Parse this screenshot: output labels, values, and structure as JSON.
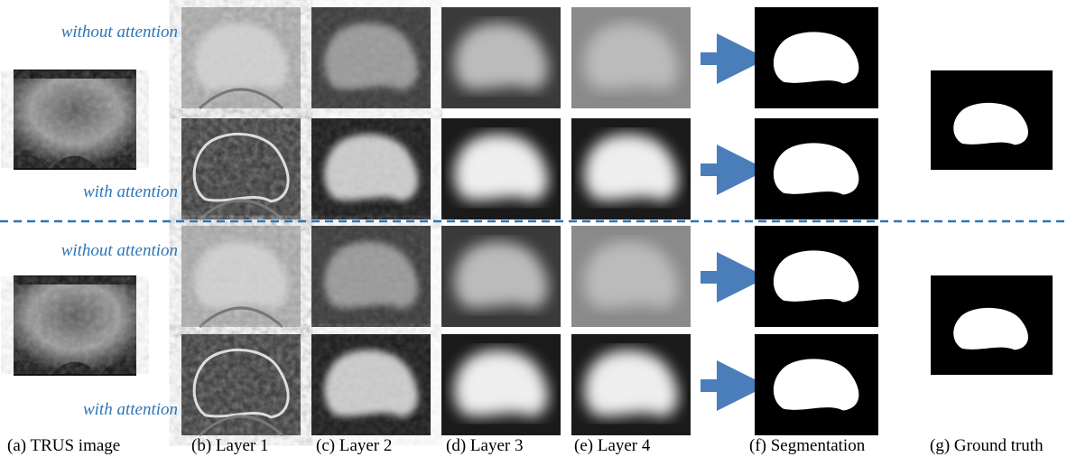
{
  "row_labels": [
    "without attention",
    "with attention",
    "without attention",
    "with attention"
  ],
  "captions": [
    "(a) TRUS image",
    "(b) Layer 1",
    "(c) Layer 2",
    "(d) Layer 3",
    "(e) Layer 4",
    "(f) Segmentation",
    "(g) Ground truth"
  ]
}
